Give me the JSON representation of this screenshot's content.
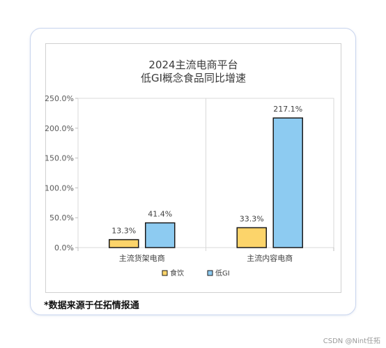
{
  "chart_data": {
    "type": "bar",
    "title": [
      "2024主流电商平台",
      "低GI概念食品同比增速"
    ],
    "categories": [
      "主流货架电商",
      "主流内容电商"
    ],
    "series": [
      {
        "name": "食饮",
        "values": [
          13.3,
          33.3
        ],
        "labels": [
          "13.3%",
          "33.3%"
        ],
        "color": "#FCD46A"
      },
      {
        "name": "低GI",
        "values": [
          41.4,
          217.1
        ],
        "labels": [
          "41.4%",
          "217.1%"
        ],
        "color": "#8DCBF1"
      }
    ],
    "yticks": [
      "0.0%",
      "50.0%",
      "100.0%",
      "150.0%",
      "200.0%",
      "250.0%"
    ],
    "ylim": [
      0,
      250
    ],
    "grid": "vertical-category-separators",
    "legend": "bottom"
  },
  "footnote": "*数据来源于任拓情报通",
  "watermark": "CSDN @Nint任拓"
}
